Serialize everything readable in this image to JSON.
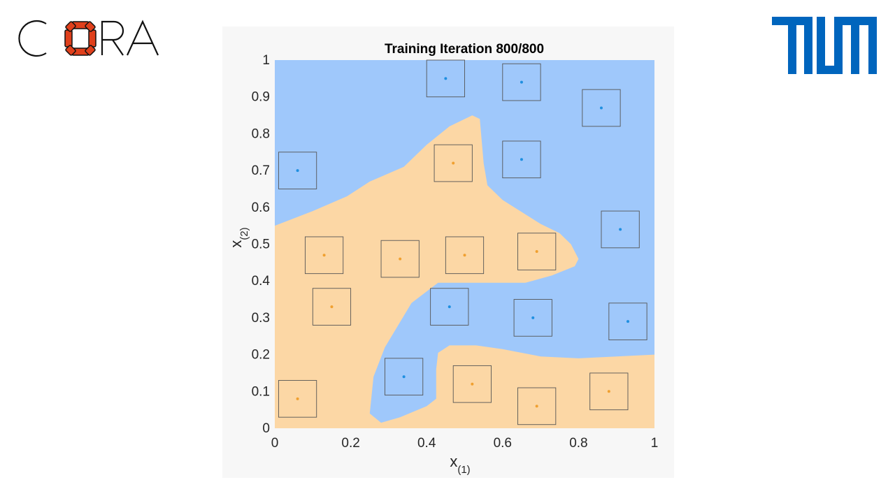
{
  "logos": {
    "cora_text": "CORA",
    "tum_text": "TUM",
    "cora_accent": "#e0401c",
    "tum_color": "#0065bd"
  },
  "chart_data": {
    "type": "scatter",
    "title": "Training Iteration 800/800",
    "xlabel_main": "x",
    "xlabel_sub": "(1)",
    "ylabel_main": "x",
    "ylabel_sub": "(2)",
    "xlim": [
      0,
      1
    ],
    "ylim": [
      0,
      1
    ],
    "x_ticks": [
      "0",
      "0.2",
      "0.4",
      "0.6",
      "0.8",
      "1"
    ],
    "y_ticks": [
      "0",
      "0.1",
      "0.2",
      "0.3",
      "0.4",
      "0.5",
      "0.6",
      "0.7",
      "0.8",
      "0.9",
      "1"
    ],
    "x_tick_values": [
      0,
      0.2,
      0.4,
      0.6,
      0.8,
      1
    ],
    "y_tick_values": [
      0,
      0.1,
      0.2,
      0.3,
      0.4,
      0.5,
      0.6,
      0.7,
      0.8,
      0.9,
      1
    ],
    "grid": false,
    "box_half_width": 0.05,
    "colors": {
      "class_blue_region": "#9fc8fb",
      "class_orange_region": "#fcd7a5",
      "class_blue_point": "#1f8fe0",
      "class_orange_point": "#f0a030",
      "box_edge": "#555555"
    },
    "series": [
      {
        "class": "blue",
        "x": [
          0.45,
          0.65,
          0.86,
          0.06,
          0.65,
          0.91,
          0.46,
          0.68,
          0.93,
          0.34
        ],
        "y": [
          0.95,
          0.94,
          0.87,
          0.7,
          0.73,
          0.54,
          0.33,
          0.3,
          0.29,
          0.14
        ]
      },
      {
        "class": "orange",
        "x": [
          0.47,
          0.13,
          0.33,
          0.5,
          0.69,
          0.15,
          0.06,
          0.52,
          0.69,
          0.88
        ],
        "y": [
          0.72,
          0.47,
          0.46,
          0.47,
          0.48,
          0.33,
          0.08,
          0.12,
          0.06,
          0.1
        ]
      }
    ],
    "decision_region_orange": [
      [
        0,
        0
      ],
      [
        1,
        0
      ],
      [
        1,
        0.2
      ],
      [
        0.8,
        0.19
      ],
      [
        0.7,
        0.195
      ],
      [
        0.6,
        0.215
      ],
      [
        0.53,
        0.225
      ],
      [
        0.46,
        0.225
      ],
      [
        0.43,
        0.205
      ],
      [
        0.425,
        0.16
      ],
      [
        0.425,
        0.08
      ],
      [
        0.4,
        0.06
      ],
      [
        0.33,
        0.03
      ],
      [
        0.28,
        0.015
      ],
      [
        0.25,
        0.04
      ],
      [
        0.26,
        0.14
      ],
      [
        0.29,
        0.22
      ],
      [
        0.36,
        0.34
      ],
      [
        0.43,
        0.395
      ],
      [
        0.53,
        0.395
      ],
      [
        0.66,
        0.395
      ],
      [
        0.73,
        0.415
      ],
      [
        0.79,
        0.44
      ],
      [
        0.8,
        0.46
      ],
      [
        0.78,
        0.5
      ],
      [
        0.75,
        0.53
      ],
      [
        0.7,
        0.555
      ],
      [
        0.6,
        0.62
      ],
      [
        0.56,
        0.66
      ],
      [
        0.55,
        0.72
      ],
      [
        0.54,
        0.84
      ],
      [
        0.52,
        0.85
      ],
      [
        0.46,
        0.82
      ],
      [
        0.4,
        0.77
      ],
      [
        0.34,
        0.71
      ],
      [
        0.25,
        0.67
      ],
      [
        0.19,
        0.63
      ],
      [
        0.1,
        0.59
      ],
      [
        0,
        0.55
      ]
    ]
  }
}
